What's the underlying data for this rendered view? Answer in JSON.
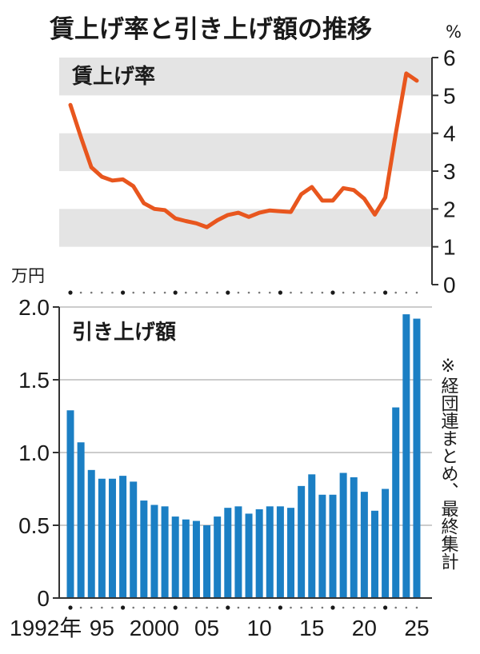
{
  "title": "賃上げ率と引き上げ額の推移",
  "colors": {
    "line": "#e8561e",
    "bar": "#1b7fc4",
    "band": "#e4e4e4",
    "axis": "#333333",
    "grid": "#9a9a9a"
  },
  "note": "※経団連まとめ、最終集計",
  "chart_data": [
    {
      "type": "line",
      "label": "賃上げ率",
      "unit": "%",
      "ylim": [
        0,
        6
      ],
      "y_ticks": [
        "0",
        "1",
        "2",
        "3",
        "4",
        "5",
        "6"
      ],
      "grid": "alternating bands",
      "x": [
        1992,
        1993,
        1994,
        1995,
        1996,
        1997,
        1998,
        1999,
        2000,
        2001,
        2002,
        2003,
        2004,
        2005,
        2006,
        2007,
        2008,
        2009,
        2010,
        2011,
        2012,
        2013,
        2014,
        2015,
        2016,
        2017,
        2018,
        2019,
        2020,
        2021,
        2022,
        2023,
        2024,
        2025
      ],
      "values": [
        4.75,
        3.9,
        3.1,
        2.85,
        2.75,
        2.78,
        2.6,
        2.15,
        2.0,
        1.97,
        1.75,
        1.68,
        1.62,
        1.52,
        1.7,
        1.84,
        1.9,
        1.79,
        1.9,
        1.96,
        1.94,
        1.92,
        2.39,
        2.58,
        2.22,
        2.22,
        2.55,
        2.5,
        2.27,
        1.85,
        2.3,
        3.99,
        5.58,
        5.39
      ]
    },
    {
      "type": "bar",
      "label": "引き上げ額",
      "unit": "万円",
      "ylim": [
        0,
        2.0
      ],
      "y_ticks": [
        "0",
        "0.5",
        "1.0",
        "1.5",
        "2.0"
      ],
      "grid": "horizontal",
      "x": [
        1992,
        1993,
        1994,
        1995,
        1996,
        1997,
        1998,
        1999,
        2000,
        2001,
        2002,
        2003,
        2004,
        2005,
        2006,
        2007,
        2008,
        2009,
        2010,
        2011,
        2012,
        2013,
        2014,
        2015,
        2016,
        2017,
        2018,
        2019,
        2020,
        2021,
        2022,
        2023,
        2024,
        2025
      ],
      "x_tick_labels": [
        "1992年",
        "95",
        "2000",
        "05",
        "10",
        "15",
        "20",
        "25"
      ],
      "values": [
        1.29,
        1.07,
        0.88,
        0.82,
        0.82,
        0.84,
        0.8,
        0.67,
        0.64,
        0.63,
        0.56,
        0.54,
        0.53,
        0.5,
        0.56,
        0.62,
        0.63,
        0.58,
        0.61,
        0.63,
        0.63,
        0.62,
        0.77,
        0.85,
        0.71,
        0.71,
        0.86,
        0.83,
        0.73,
        0.6,
        0.75,
        1.31,
        1.95,
        1.92
      ]
    }
  ]
}
